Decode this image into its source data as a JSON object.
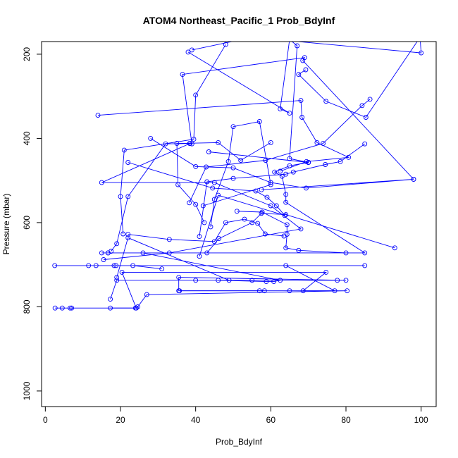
{
  "chart_data": {
    "type": "line",
    "title": "ATOM4 Northeast_Pacific_1 Prob_BdyInf",
    "xlabel": "Prob_BdyInf",
    "ylabel": "Pressure (mbar)",
    "xlim": [
      -1,
      104
    ],
    "ylim": [
      1037,
      170
    ],
    "y_reversed": true,
    "x_ticks": [
      0,
      20,
      40,
      60,
      80,
      100
    ],
    "y_ticks": [
      200,
      400,
      600,
      800,
      1000
    ],
    "grid": false,
    "legend": "none",
    "series_color": "#0000ff",
    "series": [
      {
        "values": [
          [
            2.6,
            803
          ],
          [
            4.5,
            803
          ],
          [
            6.6,
            803
          ],
          [
            7.0,
            803
          ],
          [
            24.0,
            803
          ],
          [
            24.6,
            800
          ],
          [
            27.0,
            771
          ],
          [
            80.3,
            762
          ],
          [
            65.0,
            762
          ],
          [
            35.7,
            762
          ]
        ]
      },
      {
        "values": [
          [
            17.3,
            803
          ],
          [
            24.2,
            803
          ],
          [
            20.4,
            718
          ],
          [
            74.7,
            718
          ],
          [
            68.6,
            762
          ],
          [
            77.0,
            762
          ],
          [
            64.0,
            702
          ],
          [
            85.0,
            702
          ],
          [
            2.5,
            702
          ],
          [
            11.5,
            702
          ],
          [
            13.5,
            702
          ],
          [
            18.3,
            702
          ],
          [
            18.8,
            702
          ],
          [
            23.3,
            702
          ],
          [
            31.0,
            710
          ]
        ]
      },
      {
        "values": [
          [
            17.3,
            782
          ],
          [
            19.0,
            737
          ],
          [
            55.0,
            737
          ],
          [
            77.7,
            737
          ],
          [
            40.0,
            737
          ],
          [
            80.0,
            737
          ],
          [
            35.5,
            730
          ],
          [
            35.5,
            762
          ],
          [
            57.0,
            762
          ],
          [
            58.3,
            762
          ]
        ]
      },
      {
        "values": [
          [
            19.0,
            730
          ],
          [
            22.0,
            636
          ],
          [
            48.9,
            737
          ],
          [
            46.0,
            737
          ],
          [
            58.8,
            740
          ],
          [
            60.8,
            740
          ],
          [
            62.5,
            737
          ],
          [
            26.0,
            672
          ]
        ]
      },
      {
        "values": [
          [
            15.0,
            672
          ],
          [
            16.7,
            672
          ],
          [
            16.7,
            672
          ],
          [
            85.0,
            672
          ],
          [
            64.0,
            552
          ],
          [
            64.0,
            533
          ],
          [
            63.0,
            490
          ],
          [
            61.0,
            480
          ],
          [
            65.0,
            465
          ],
          [
            70.0,
            457
          ],
          [
            43.5,
            432
          ]
        ]
      },
      {
        "values": [
          [
            15.5,
            688
          ],
          [
            33.0,
            672
          ],
          [
            68.0,
            615
          ],
          [
            60.0,
            560
          ],
          [
            45.0,
            505
          ],
          [
            15.0,
            505
          ],
          [
            38.5,
            412
          ]
        ]
      },
      {
        "values": [
          [
            17.5,
            668
          ],
          [
            19.0,
            650
          ],
          [
            22.0,
            538
          ],
          [
            32.0,
            413
          ],
          [
            38.4,
            412
          ],
          [
            39.0,
            413
          ],
          [
            36.5,
            248
          ],
          [
            69.0,
            208
          ],
          [
            68.5,
            215
          ],
          [
            98.0,
            497
          ]
        ]
      },
      {
        "values": [
          [
            20.7,
            627
          ],
          [
            20.0,
            538
          ],
          [
            21.0,
            428
          ],
          [
            39.5,
            402
          ],
          [
            40.0,
            297
          ],
          [
            48.0,
            177
          ]
        ]
      },
      {
        "values": [
          [
            22.0,
            457
          ],
          [
            44.5,
            518
          ],
          [
            56.0,
            525
          ],
          [
            59.0,
            540
          ],
          [
            61.5,
            560
          ],
          [
            63.7,
            583
          ],
          [
            46.0,
            535
          ],
          [
            41.0,
            680
          ]
        ]
      },
      {
        "values": [
          [
            38.3,
            553
          ],
          [
            42.8,
            468
          ],
          [
            58.6,
            452
          ],
          [
            73.9,
            412
          ],
          [
            84.3,
            322
          ],
          [
            86.4,
            307
          ]
        ]
      },
      {
        "values": [
          [
            42.3,
            600
          ],
          [
            40.0,
            557
          ],
          [
            35.3,
            510
          ],
          [
            35.0,
            412
          ],
          [
            46.0,
            410
          ],
          [
            52.0,
            452
          ],
          [
            60.0,
            410
          ]
        ]
      },
      {
        "values": [
          [
            41.0,
            633
          ],
          [
            43.0,
            503
          ],
          [
            50.0,
            495
          ],
          [
            64.0,
            485
          ],
          [
            66.0,
            480
          ],
          [
            74.5,
            462
          ],
          [
            78.5,
            455
          ],
          [
            85.0,
            413
          ]
        ]
      },
      {
        "values": [
          [
            44.0,
            610
          ],
          [
            45.0,
            545
          ],
          [
            48.7,
            455
          ],
          [
            50.0,
            372
          ],
          [
            57.0,
            360
          ],
          [
            60.0,
            510
          ],
          [
            42.0,
            560
          ]
        ]
      },
      {
        "values": [
          [
            38.0,
            195
          ],
          [
            65.0,
            340
          ],
          [
            62.5,
            330
          ],
          [
            65.0,
            165
          ],
          [
            67.0,
            180
          ],
          [
            65.0,
            448
          ],
          [
            70.0,
            457
          ]
        ]
      },
      {
        "values": [
          [
            14.0,
            345
          ],
          [
            68.0,
            310
          ],
          [
            68.3,
            350
          ],
          [
            72.3,
            410
          ],
          [
            80.7,
            445
          ],
          [
            69.5,
            455
          ],
          [
            62.5,
            478
          ]
        ]
      },
      {
        "values": [
          [
            43.0,
            672
          ],
          [
            46.2,
            638
          ],
          [
            55.0,
            600
          ],
          [
            57.5,
            578
          ],
          [
            64.0,
            581
          ],
          [
            93.0,
            660
          ]
        ]
      },
      {
        "values": [
          [
            28.0,
            400
          ],
          [
            40.0,
            467
          ],
          [
            50.0,
            470
          ],
          [
            60.0,
            505
          ],
          [
            69.4,
            518
          ],
          [
            98.0,
            497
          ],
          [
            57.5,
            522
          ]
        ]
      },
      {
        "values": [
          [
            51.0,
            573
          ],
          [
            57.7,
            575
          ],
          [
            64.3,
            605
          ],
          [
            64.3,
            628
          ],
          [
            64.0,
            660
          ],
          [
            67.4,
            666
          ],
          [
            80.0,
            672
          ]
        ]
      },
      {
        "values": [
          [
            39.0,
            190
          ],
          [
            55.0,
            160
          ],
          [
            100.0,
            197
          ],
          [
            99.7,
            160
          ],
          [
            85.3,
            350
          ],
          [
            74.7,
            312
          ],
          [
            67.4,
            248
          ],
          [
            69.3,
            237
          ]
        ]
      },
      {
        "values": [
          [
            22.0,
            628
          ],
          [
            33.0,
            640
          ],
          [
            45.0,
            645
          ],
          [
            48.0,
            600
          ],
          [
            53.0,
            592
          ],
          [
            56.5,
            602
          ],
          [
            58.5,
            627
          ],
          [
            63.5,
            632
          ]
        ]
      }
    ]
  }
}
